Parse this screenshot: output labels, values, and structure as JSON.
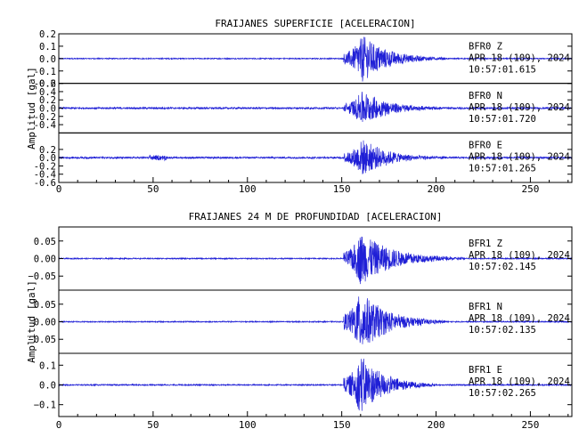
{
  "chart_data": [
    {
      "type": "line",
      "title": "FRAIJANES SUPERFICIE [ACELERACION]",
      "ylabel": "Amplitud [gal]",
      "xlim": [
        0,
        272
      ],
      "x_ticks": [
        "0",
        "50",
        "100",
        "150",
        "200",
        "250"
      ],
      "series": [
        {
          "name": "BFR0 Z",
          "station": "BFR0",
          "component": "Z",
          "date": "APR 18 (109), 2024",
          "time": "10:57:01.615",
          "ylim": [
            -0.2,
            0.2
          ],
          "y_ticks": [
            {
              "value": 0.2,
              "label": "0.2"
            },
            {
              "value": 0.1,
              "label": "0.1"
            },
            {
              "value": 0.0,
              "label": "0.0"
            },
            {
              "value": -0.1,
              "label": "-0.1"
            },
            {
              "value": -0.2,
              "label": "-0.2"
            }
          ],
          "noise_amplitude": 0.004,
          "event": {
            "onset": 151,
            "peak_time": 161,
            "peak_amplitude": 0.19,
            "decay_end": 205
          }
        },
        {
          "name": "BFR0 N",
          "station": "BFR0",
          "component": "N",
          "date": "APR 18 (109), 2024",
          "time": "10:57:01.720",
          "ylim": [
            -0.6,
            0.6
          ],
          "y_ticks": [
            {
              "value": 0.6,
              "label": "0.6"
            },
            {
              "value": 0.4,
              "label": "0.4"
            },
            {
              "value": 0.2,
              "label": "0.2"
            },
            {
              "value": 0.0,
              "label": "0.0"
            },
            {
              "value": -0.2,
              "label": "-0.2"
            },
            {
              "value": -0.4,
              "label": "-0.4"
            }
          ],
          "noise_amplitude": 0.02,
          "event": {
            "onset": 151,
            "peak_time": 161,
            "peak_amplitude": 0.42,
            "decay_end": 205
          }
        },
        {
          "name": "BFR0 E",
          "station": "BFR0",
          "component": "E",
          "date": "APR 18 (109), 2024",
          "time": "10:57:01.265",
          "ylim": [
            -0.6,
            0.6
          ],
          "y_ticks": [
            {
              "value": 0.2,
              "label": "0.2"
            },
            {
              "value": 0.0,
              "label": "0.0"
            },
            {
              "value": -0.2,
              "label": "-0.2"
            },
            {
              "value": -0.4,
              "label": "-0.4"
            },
            {
              "value": -0.6,
              "label": "-0.6"
            }
          ],
          "noise_amplitude": 0.02,
          "event": {
            "onset": 151,
            "peak_time": 161,
            "peak_amplitude": 0.45,
            "decay_end": 205
          }
        }
      ]
    },
    {
      "type": "line",
      "title": "FRAIJANES 24 M DE PROFUNDIDAD [ACELERACION]",
      "ylabel": "Amplitud [gal]",
      "xlim": [
        0,
        272
      ],
      "x_ticks": [
        "0",
        "50",
        "100",
        "150",
        "200",
        "250"
      ],
      "series": [
        {
          "name": "BFR1 Z",
          "station": "BFR1",
          "component": "Z",
          "date": "APR 18 (109), 2024",
          "time": "10:57:02.145",
          "ylim": [
            -0.09,
            0.09
          ],
          "y_ticks": [
            {
              "value": 0.05,
              "label": "0.05"
            },
            {
              "value": 0.0,
              "label": "0.00"
            },
            {
              "value": -0.05,
              "label": "−0.05"
            }
          ],
          "noise_amplitude": 0.0015,
          "event": {
            "onset": 151,
            "peak_time": 160,
            "peak_amplitude": 0.075,
            "decay_end": 215
          }
        },
        {
          "name": "BFR1 N",
          "station": "BFR1",
          "component": "N",
          "date": "APR 18 (109), 2024",
          "time": "10:57:02.135",
          "ylim": [
            -0.09,
            0.09
          ],
          "y_ticks": [
            {
              "value": 0.05,
              "label": "0.05"
            },
            {
              "value": 0.0,
              "label": "0.00"
            },
            {
              "value": -0.05,
              "label": "−0.05"
            }
          ],
          "noise_amplitude": 0.0015,
          "event": {
            "onset": 151,
            "peak_time": 160,
            "peak_amplitude": 0.088,
            "decay_end": 205
          }
        },
        {
          "name": "BFR1 E",
          "station": "BFR1",
          "component": "E",
          "date": "APR 18 (109), 2024",
          "time": "10:57:02.265",
          "ylim": [
            -0.16,
            0.16
          ],
          "y_ticks": [
            {
              "value": 0.1,
              "label": "0.1"
            },
            {
              "value": 0.0,
              "label": "0.0"
            },
            {
              "value": -0.1,
              "label": "−0.1"
            }
          ],
          "noise_amplitude": 0.003,
          "event": {
            "onset": 151,
            "peak_time": 160,
            "peak_amplitude": 0.15,
            "decay_end": 200
          }
        }
      ]
    }
  ],
  "colors": {
    "trace": "#1f1fd6",
    "axes": "#000000",
    "background": "#ffffff"
  }
}
